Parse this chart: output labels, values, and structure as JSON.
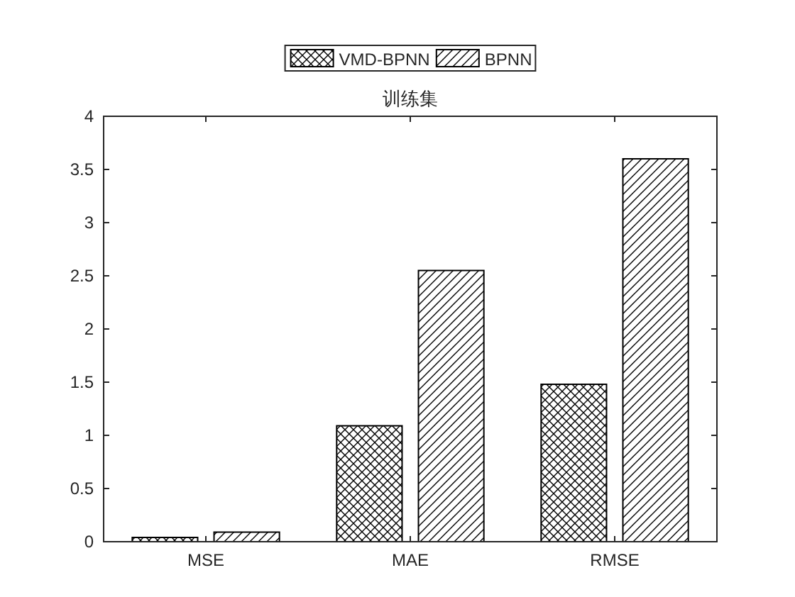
{
  "chart_data": {
    "type": "bar",
    "title": "训练集",
    "categories": [
      "MSE",
      "MAE",
      "RMSE"
    ],
    "series": [
      {
        "name": "VMD-BPNN",
        "color": "#000000",
        "values": [
          0.04,
          1.09,
          1.48
        ]
      },
      {
        "name": "BPNN",
        "color": "#000000",
        "values": [
          0.09,
          2.55,
          3.6
        ]
      }
    ],
    "ylim": [
      0,
      4
    ],
    "yticks": [
      0,
      {
        "value": 0.5,
        "label": "0.5"
      },
      1,
      {
        "value": 1.5,
        "label": "1.5"
      },
      2,
      {
        "value": 2.5,
        "label": "2.5"
      },
      3,
      {
        "value": 3.5,
        "label": "3.5"
      },
      4
    ],
    "grid": false,
    "legend": "top"
  }
}
